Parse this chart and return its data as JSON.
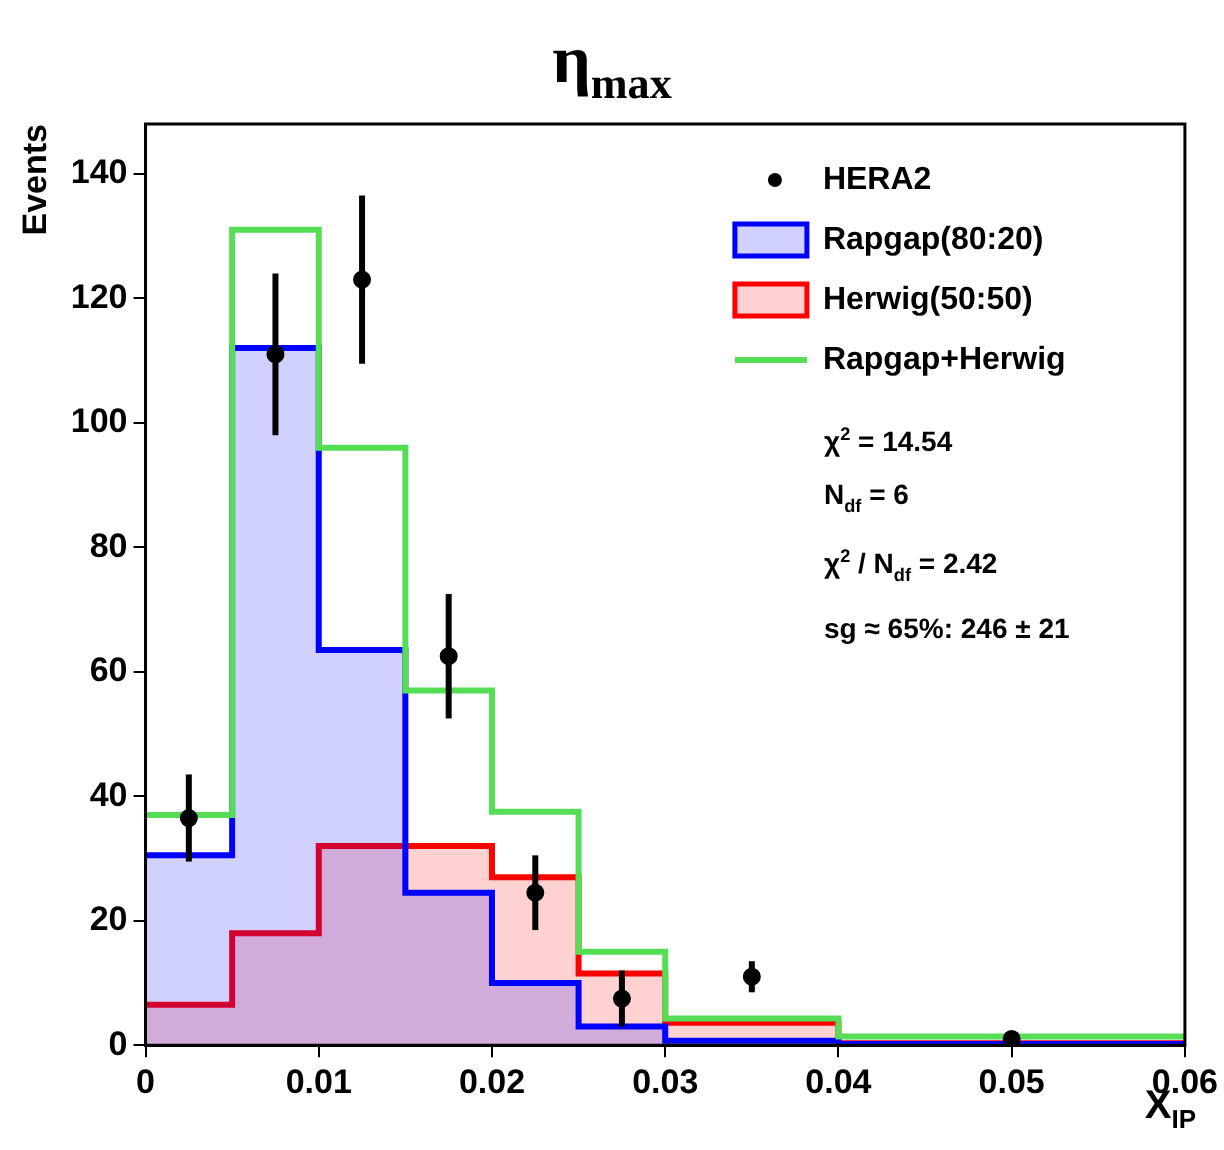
{
  "chart_data": {
    "type": "histogram",
    "title": "η$_{max}$",
    "xlabel": "X$_{IP}$",
    "ylabel": "Events",
    "bins": [
      0,
      0.005,
      0.01,
      0.015,
      0.02,
      0.025,
      0.03,
      0.04,
      0.06
    ],
    "series": [
      {
        "name": "HERA2",
        "type": "scatter",
        "marker": "circle",
        "color": "#000000",
        "x": [
          0.0025,
          0.0075,
          0.0125,
          0.0175,
          0.0225,
          0.0275,
          0.035,
          0.05
        ],
        "values": [
          36.5,
          111,
          123,
          62.5,
          24.5,
          7.5,
          11,
          1
        ],
        "errors": [
          7,
          13,
          13.5,
          10,
          6,
          4.5,
          2.5,
          1
        ]
      },
      {
        "name": "Rapgap(80:20)",
        "color": "#0000ff",
        "values": [
          30.5,
          112,
          63.5,
          24.5,
          10,
          3,
          0.7,
          0.2
        ]
      },
      {
        "name": "Herwig(50:50)",
        "color": "#ff0000",
        "values": [
          6.5,
          18,
          32,
          32,
          27,
          11.5,
          3.6,
          0.3
        ]
      },
      {
        "name": "Rapgap+Herwig",
        "type": "step",
        "color": "#55dd55",
        "x": [
          0,
          0.005,
          0.01,
          0.015,
          0.02,
          0.025,
          0.03,
          0.04,
          0.06
        ],
        "values": [
          37,
          131,
          96,
          57,
          37.5,
          15,
          4.3,
          1.4,
          1.4
        ]
      }
    ],
    "xlim": [
      0,
      0.06
    ],
    "xticks": [
      0,
      0.01,
      0.02,
      0.03,
      0.04,
      0.05,
      0.06
    ],
    "ylim": [
      0,
      148
    ],
    "yticks": [
      0,
      20,
      40,
      60,
      80,
      100,
      120,
      140
    ],
    "grid": false,
    "legend": "top right",
    "annotations": [
      "χ$^{2}$ = 14.54",
      "N$_{df}$ = 6",
      "χ$^{2}$ / N$_{df}$ = 2.42",
      "sg ≈ 65%: 246 ± 21"
    ]
  }
}
